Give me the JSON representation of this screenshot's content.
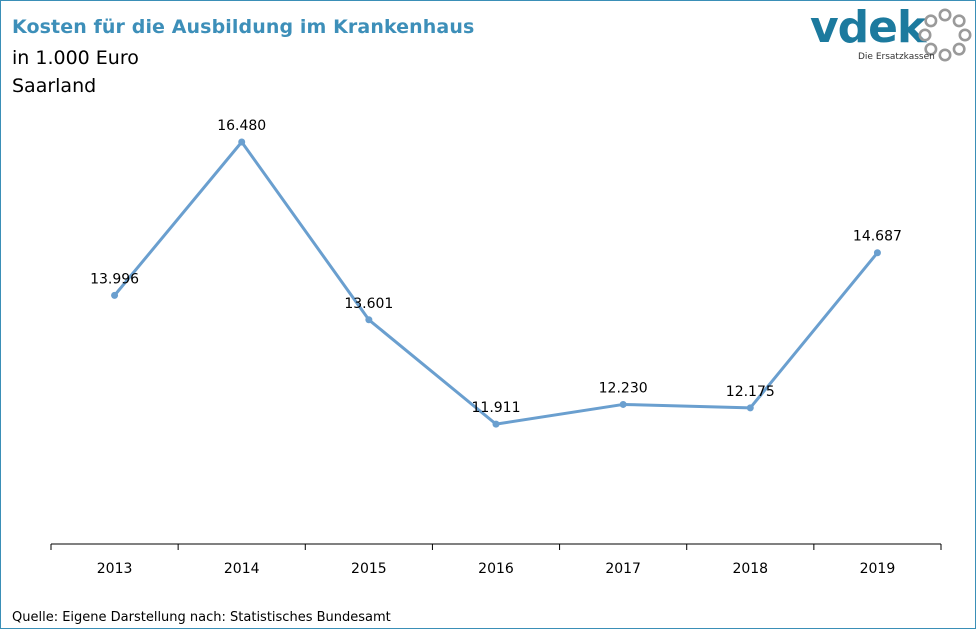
{
  "header": {
    "title": "Kosten für die Ausbildung im Krankenhaus",
    "subtitle_unit": "in 1.000 Euro",
    "subtitle_region": "Saarland"
  },
  "logo": {
    "wordmark": "vdek",
    "tagline": "Die Ersatzkassen"
  },
  "footer": {
    "source": "Quelle: Eigene Darstellung nach: Statistisches Bundesamt"
  },
  "colors": {
    "title": "#3d8fb9",
    "line": "#6a9fcf",
    "frame": "#3a8fb7",
    "logo": "#1c7a9e",
    "logo_ring": "#9a9a9a"
  },
  "chart_data": {
    "type": "line",
    "categories": [
      "2013",
      "2014",
      "2015",
      "2016",
      "2017",
      "2018",
      "2019"
    ],
    "values": [
      13996,
      16480,
      13601,
      11911,
      12230,
      12175,
      14687
    ],
    "data_labels": [
      "13.996",
      "16.480",
      "13.601",
      "11.911",
      "12.230",
      "12.175",
      "14.687"
    ],
    "ylim": [
      9970,
      17970
    ],
    "grid": false,
    "legend": "none",
    "y_axis_visible": false
  }
}
